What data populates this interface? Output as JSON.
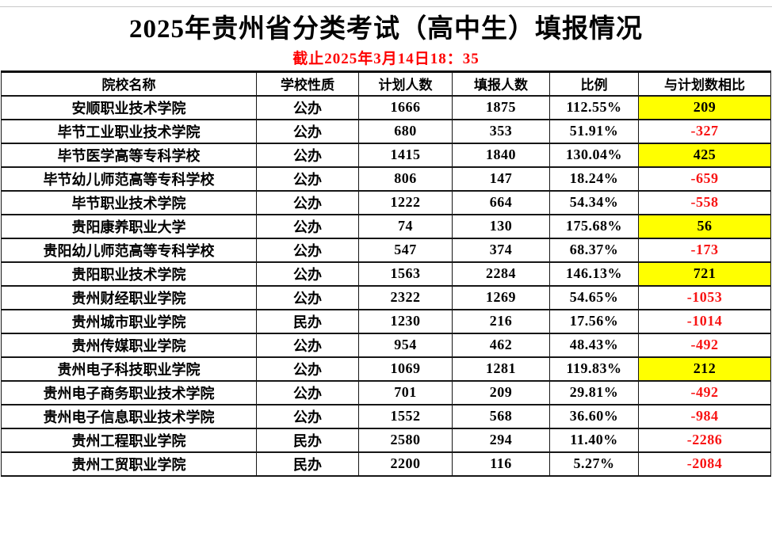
{
  "title": "2025年贵州省分类考试（高中生）填报情况",
  "subtitle": "截止2025年3月14日18：35",
  "colors": {
    "subtitle_red": "#fe0000",
    "negative_red": "#f81414",
    "positive_text": "#000000",
    "highlight_yellow": "#ffff00",
    "cell_white": "#ffffff",
    "border": "#161616"
  },
  "table": {
    "headers": [
      "院校名称",
      "学校性质",
      "计划人数",
      "填报人数",
      "比例",
      "与计划数相比"
    ],
    "rows": [
      {
        "name": "安顺职业技术学院",
        "type": "公办",
        "plan": "1666",
        "applied": "1875",
        "ratio": "112.55%",
        "diff": "209",
        "highlight": true
      },
      {
        "name": "毕节工业职业技术学院",
        "type": "公办",
        "plan": "680",
        "applied": "353",
        "ratio": "51.91%",
        "diff": "-327",
        "highlight": false
      },
      {
        "name": "毕节医学高等专科学校",
        "type": "公办",
        "plan": "1415",
        "applied": "1840",
        "ratio": "130.04%",
        "diff": "425",
        "highlight": true
      },
      {
        "name": "毕节幼儿师范高等专科学校",
        "type": "公办",
        "plan": "806",
        "applied": "147",
        "ratio": "18.24%",
        "diff": "-659",
        "highlight": false
      },
      {
        "name": "毕节职业技术学院",
        "type": "公办",
        "plan": "1222",
        "applied": "664",
        "ratio": "54.34%",
        "diff": "-558",
        "highlight": false
      },
      {
        "name": "贵阳康养职业大学",
        "type": "公办",
        "plan": "74",
        "applied": "130",
        "ratio": "175.68%",
        "diff": "56",
        "highlight": true
      },
      {
        "name": "贵阳幼儿师范高等专科学校",
        "type": "公办",
        "plan": "547",
        "applied": "374",
        "ratio": "68.37%",
        "diff": "-173",
        "highlight": false
      },
      {
        "name": "贵阳职业技术学院",
        "type": "公办",
        "plan": "1563",
        "applied": "2284",
        "ratio": "146.13%",
        "diff": "721",
        "highlight": true
      },
      {
        "name": "贵州财经职业学院",
        "type": "公办",
        "plan": "2322",
        "applied": "1269",
        "ratio": "54.65%",
        "diff": "-1053",
        "highlight": false
      },
      {
        "name": "贵州城市职业学院",
        "type": "民办",
        "plan": "1230",
        "applied": "216",
        "ratio": "17.56%",
        "diff": "-1014",
        "highlight": false
      },
      {
        "name": "贵州传媒职业学院",
        "type": "公办",
        "plan": "954",
        "applied": "462",
        "ratio": "48.43%",
        "diff": "-492",
        "highlight": false
      },
      {
        "name": "贵州电子科技职业学院",
        "type": "公办",
        "plan": "1069",
        "applied": "1281",
        "ratio": "119.83%",
        "diff": "212",
        "highlight": true
      },
      {
        "name": "贵州电子商务职业技术学院",
        "type": "公办",
        "plan": "701",
        "applied": "209",
        "ratio": "29.81%",
        "diff": "-492",
        "highlight": false
      },
      {
        "name": "贵州电子信息职业技术学院",
        "type": "公办",
        "plan": "1552",
        "applied": "568",
        "ratio": "36.60%",
        "diff": "-984",
        "highlight": false
      },
      {
        "name": "贵州工程职业学院",
        "type": "民办",
        "plan": "2580",
        "applied": "294",
        "ratio": "11.40%",
        "diff": "-2286",
        "highlight": false
      },
      {
        "name": "贵州工贸职业学院",
        "type": "民办",
        "plan": "2200",
        "applied": "116",
        "ratio": "5.27%",
        "diff": "-2084",
        "highlight": false
      }
    ]
  }
}
